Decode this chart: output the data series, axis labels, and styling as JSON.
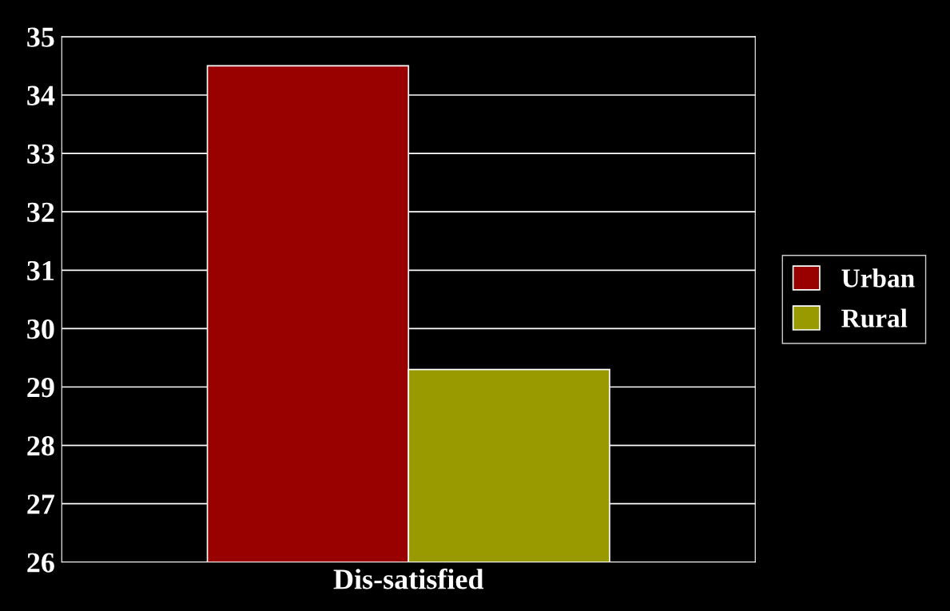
{
  "chart_data": {
    "type": "bar",
    "categories": [
      "Dis-satisfied"
    ],
    "series": [
      {
        "name": "Urban",
        "color": "#990000",
        "values": [
          34.5
        ]
      },
      {
        "name": "Rural",
        "color": "#999900",
        "values": [
          29.3
        ]
      }
    ],
    "ylim": [
      26,
      35
    ],
    "yticks": [
      26,
      27,
      28,
      29,
      30,
      31,
      32,
      33,
      34,
      35
    ],
    "grid": "y",
    "legend": "right"
  }
}
